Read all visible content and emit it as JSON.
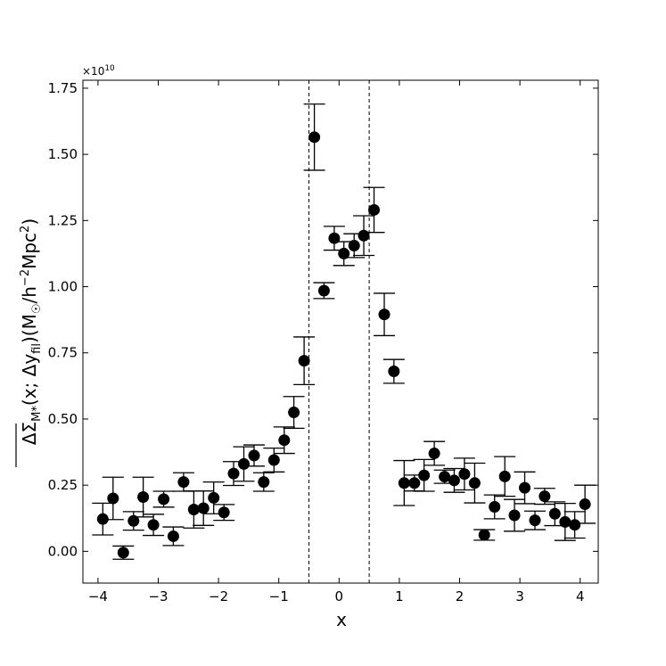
{
  "chart_data": {
    "type": "scatter",
    "xlabel": "x",
    "ylabel": "ΔΣ_M*(x; Δy_fil) (M☉/h⁻²Mpc²)",
    "ylabel_parts": {
      "symbol": "ΔΣ",
      "symbol_sub": "M*",
      "args": "(x; Δy",
      "args_sub": "fil",
      "args_close": ")(M",
      "sun": "☉",
      "unit_mid": "/h",
      "exp1": "−2",
      "unit_mpc": "Mpc",
      "exp2": "2",
      "close": ")"
    },
    "y_offset_label": {
      "base": "×10",
      "exp": "10"
    },
    "xlim": [
      -4.25,
      4.3
    ],
    "ylim": [
      -0.12,
      1.78
    ],
    "x_ticks": [
      -4,
      -3,
      -2,
      -1,
      0,
      1,
      2,
      3,
      4
    ],
    "x_tick_labels": [
      "−4",
      "−3",
      "−2",
      "−1",
      "0",
      "1",
      "2",
      "3",
      "4"
    ],
    "y_ticks": [
      0.0,
      0.25,
      0.5,
      0.75,
      1.0,
      1.25,
      1.5,
      1.75
    ],
    "y_tick_labels": [
      "0.00",
      "0.25",
      "0.50",
      "0.75",
      "1.00",
      "1.25",
      "1.50",
      "1.75"
    ],
    "vlines": [
      -0.5,
      0.5
    ],
    "grid": false,
    "marker_color": "#000000",
    "points": [
      {
        "x": -3.92,
        "y": 0.122,
        "err": 0.06
      },
      {
        "x": -3.75,
        "y": 0.2,
        "err": 0.08
      },
      {
        "x": -3.58,
        "y": -0.005,
        "err": 0.025
      },
      {
        "x": -3.41,
        "y": 0.115,
        "err": 0.035
      },
      {
        "x": -3.25,
        "y": 0.205,
        "err": 0.075
      },
      {
        "x": -3.08,
        "y": 0.1,
        "err": 0.04
      },
      {
        "x": -2.91,
        "y": 0.197,
        "err": 0.03
      },
      {
        "x": -2.75,
        "y": 0.057,
        "err": 0.035
      },
      {
        "x": -2.58,
        "y": 0.262,
        "err": 0.035
      },
      {
        "x": -2.41,
        "y": 0.158,
        "err": 0.07
      },
      {
        "x": -2.25,
        "y": 0.163,
        "err": 0.065
      },
      {
        "x": -2.08,
        "y": 0.202,
        "err": 0.06
      },
      {
        "x": -1.91,
        "y": 0.147,
        "err": 0.03
      },
      {
        "x": -1.75,
        "y": 0.294,
        "err": 0.045
      },
      {
        "x": -1.58,
        "y": 0.33,
        "err": 0.065
      },
      {
        "x": -1.41,
        "y": 0.362,
        "err": 0.04
      },
      {
        "x": -1.25,
        "y": 0.262,
        "err": 0.035
      },
      {
        "x": -1.08,
        "y": 0.345,
        "err": 0.045
      },
      {
        "x": -0.91,
        "y": 0.42,
        "err": 0.05
      },
      {
        "x": -0.75,
        "y": 0.525,
        "err": 0.06
      },
      {
        "x": -0.58,
        "y": 0.72,
        "err": 0.09
      },
      {
        "x": -0.41,
        "y": 1.565,
        "err": 0.125
      },
      {
        "x": -0.25,
        "y": 0.985,
        "err": 0.03
      },
      {
        "x": -0.08,
        "y": 1.183,
        "err": 0.045
      },
      {
        "x": 0.08,
        "y": 1.125,
        "err": 0.045
      },
      {
        "x": 0.25,
        "y": 1.155,
        "err": 0.045
      },
      {
        "x": 0.41,
        "y": 1.193,
        "err": 0.075
      },
      {
        "x": 0.58,
        "y": 1.29,
        "err": 0.085
      },
      {
        "x": 0.75,
        "y": 0.895,
        "err": 0.08
      },
      {
        "x": 0.91,
        "y": 0.68,
        "err": 0.045
      },
      {
        "x": 1.08,
        "y": 0.258,
        "err": 0.085
      },
      {
        "x": 1.25,
        "y": 0.258,
        "err": 0.03
      },
      {
        "x": 1.41,
        "y": 0.287,
        "err": 0.06
      },
      {
        "x": 1.58,
        "y": 0.37,
        "err": 0.045
      },
      {
        "x": 1.75,
        "y": 0.282,
        "err": 0.025
      },
      {
        "x": 1.91,
        "y": 0.268,
        "err": 0.045
      },
      {
        "x": 2.08,
        "y": 0.292,
        "err": 0.06
      },
      {
        "x": 2.25,
        "y": 0.258,
        "err": 0.075
      },
      {
        "x": 2.41,
        "y": 0.062,
        "err": 0.02
      },
      {
        "x": 2.58,
        "y": 0.168,
        "err": 0.045
      },
      {
        "x": 2.75,
        "y": 0.283,
        "err": 0.075
      },
      {
        "x": 2.91,
        "y": 0.136,
        "err": 0.06
      },
      {
        "x": 3.08,
        "y": 0.24,
        "err": 0.06
      },
      {
        "x": 3.25,
        "y": 0.117,
        "err": 0.035
      },
      {
        "x": 3.41,
        "y": 0.208,
        "err": 0.03
      },
      {
        "x": 3.58,
        "y": 0.142,
        "err": 0.045
      },
      {
        "x": 3.75,
        "y": 0.111,
        "err": 0.07
      },
      {
        "x": 3.91,
        "y": 0.1,
        "err": 0.05
      },
      {
        "x": 4.08,
        "y": 0.178,
        "err": 0.072
      }
    ]
  }
}
